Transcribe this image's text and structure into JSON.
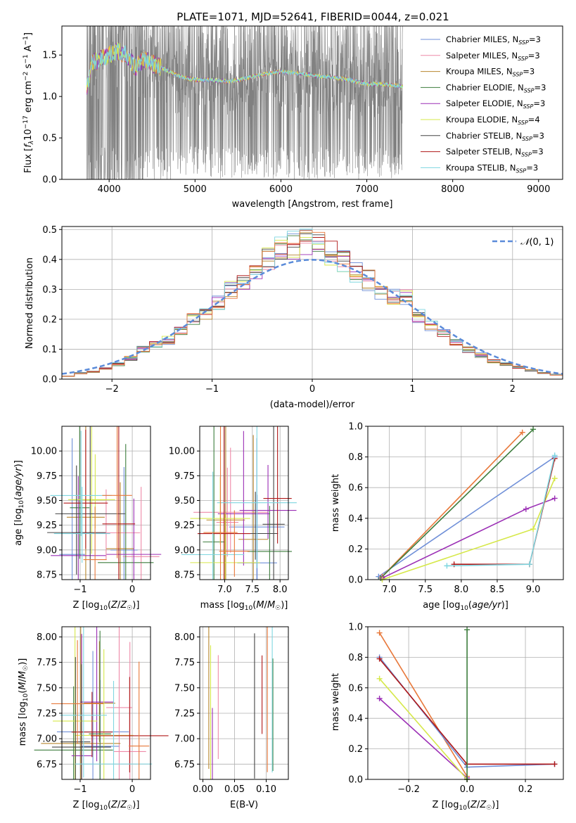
{
  "figure_title": "PLATE=1071, MJD=52641, FIBERID=0044, z=0.021",
  "colors": {
    "chabrier_miles": "#6f8fd8",
    "salpeter_miles": "#ee8aa8",
    "kroupa_miles": "#b8862e",
    "chabrier_elodie": "#3d7d3d",
    "salpeter_elodie": "#9b2eb5",
    "kroupa_elodie": "#d6e84a",
    "chabrier_stelib": "#444444",
    "salpeter_stelib": "#b01818",
    "kroupa_stelib": "#7ed6e0",
    "data": "#808080",
    "orange_curve": "#e8783a",
    "gaussian": "#5b8bd9"
  },
  "legend_entries": [
    "Chabrier MILES, N_SSP=3",
    "Salpeter MILES, N_SSP=3",
    "Kroupa MILES, N_SSP=3",
    "Chabrier ELODIE, N_SSP=3",
    "Salpeter ELODIE, N_SSP=3",
    "Kroupa ELODIE, N_SSP=4",
    "Chabrier STELIB, N_SSP=3",
    "Salpeter STELIB, N_SSP=3",
    "Kroupa STELIB, N_SSP=3"
  ],
  "chart_data": [
    {
      "id": "spectrum",
      "type": "line",
      "xlabel": "wavelength [Angstrom, rest frame]",
      "ylabel": "Flux [f_λ 10^-17 erg cm^-2 s^-1 A^-1]",
      "xlim": [
        3450,
        9280
      ],
      "ylim": [
        0,
        1.85
      ],
      "grid": false,
      "xticks": [
        4000,
        5000,
        6000,
        7000,
        8000,
        9000
      ],
      "yticks": [
        "0.0",
        "0.5",
        "1.0",
        "1.5"
      ],
      "legend_placement": "top-right",
      "data_range": [
        3740,
        7420
      ],
      "model_continuum": {
        "x": [
          3740,
          3800,
          3900,
          4000,
          4100,
          4200,
          4300,
          4400,
          4500,
          4600,
          4700,
          4800,
          4900,
          5000,
          5200,
          5400,
          5600,
          5800,
          6000,
          6200,
          6400,
          6600,
          6800,
          7000,
          7200,
          7420
        ],
        "y": [
          1.1,
          1.4,
          1.45,
          1.5,
          1.55,
          1.5,
          1.35,
          1.45,
          1.4,
          1.35,
          1.3,
          1.25,
          1.22,
          1.2,
          1.2,
          1.18,
          1.22,
          1.27,
          1.3,
          1.28,
          1.25,
          1.23,
          1.2,
          1.15,
          1.15,
          1.12
        ]
      }
    },
    {
      "id": "residuals",
      "type": "line",
      "xlabel": "(data-model)/error",
      "ylabel": "Normed distribution",
      "xlim": [
        -2.5,
        2.5
      ],
      "ylim": [
        0,
        0.51
      ],
      "grid": true,
      "xticks": [
        "−2",
        "−1",
        "0",
        "1",
        "2"
      ],
      "yticks": [
        "0.0",
        "0.1",
        "0.2",
        "0.3",
        "0.4",
        "0.5"
      ],
      "legend": "N(0,1)",
      "legend_placement": "top-right",
      "bin_edges": [
        -2.5,
        -2.375,
        -2.25,
        -2.125,
        -2.0,
        -1.875,
        -1.75,
        -1.625,
        -1.5,
        -1.375,
        -1.25,
        -1.125,
        -1.0,
        -0.875,
        -0.75,
        -0.625,
        -0.5,
        -0.375,
        -0.25,
        -0.125,
        0.0,
        0.125,
        0.25,
        0.375,
        0.5,
        0.625,
        0.75,
        0.875,
        1.0,
        1.125,
        1.25,
        1.375,
        1.5,
        1.625,
        1.75,
        1.875,
        2.0,
        2.125,
        2.25,
        2.375,
        2.5
      ],
      "histogram_mean": [
        0.01,
        0.02,
        0.025,
        0.035,
        0.05,
        0.07,
        0.1,
        0.12,
        0.13,
        0.16,
        0.2,
        0.22,
        0.26,
        0.3,
        0.33,
        0.36,
        0.4,
        0.43,
        0.45,
        0.46,
        0.45,
        0.42,
        0.39,
        0.36,
        0.33,
        0.3,
        0.28,
        0.27,
        0.21,
        0.18,
        0.16,
        0.12,
        0.1,
        0.08,
        0.06,
        0.05,
        0.04,
        0.03,
        0.02,
        0.015
      ]
    },
    {
      "id": "age_vs_Z",
      "type": "scatter",
      "xlabel": "Z [log10(Z/Z☉)]",
      "ylabel": "age [log10(age/yr)]",
      "xlim": [
        -1.35,
        0.35
      ],
      "ylim": [
        8.7,
        10.25
      ],
      "grid": true,
      "xticks": [
        "−1",
        "0"
      ],
      "yticks": [
        "8.75",
        "9.00",
        "9.25",
        "9.50",
        "9.75",
        "10.00"
      ]
    },
    {
      "id": "age_vs_mass",
      "type": "scatter",
      "xlabel": "mass [log10(M/M☉)]",
      "ylabel": "",
      "xlim": [
        6.55,
        8.15
      ],
      "ylim": [
        8.7,
        10.25
      ],
      "grid": true,
      "xticks": [
        "7.0",
        "7.5",
        "8.0"
      ],
      "yticks": [
        "8.75",
        "9.00",
        "9.25",
        "9.50",
        "9.75",
        "10.00"
      ]
    },
    {
      "id": "weight_vs_age",
      "type": "line",
      "xlabel": "age [log10(age/yr)]",
      "ylabel": "mass weight",
      "xlim": [
        6.7,
        9.42
      ],
      "ylim": [
        0,
        1.0
      ],
      "grid": true,
      "xticks": [
        "7.0",
        "7.5",
        "8.0",
        "8.5",
        "9.0"
      ],
      "yticks": [
        "0.0",
        "0.2",
        "0.4",
        "0.6",
        "0.8",
        "1.0"
      ],
      "series": [
        {
          "color_key": "chabrier_miles",
          "x": [
            6.85,
            9.3
          ],
          "y": [
            0.02,
            0.8
          ]
        },
        {
          "color_key": "orange_curve",
          "x": [
            6.9,
            8.85
          ],
          "y": [
            0.02,
            0.96
          ]
        },
        {
          "color_key": "chabrier_elodie",
          "x": [
            6.88,
            9.0
          ],
          "y": [
            0.01,
            0.98
          ]
        },
        {
          "color_key": "salpeter_elodie",
          "x": [
            6.9,
            8.9,
            9.3
          ],
          "y": [
            0.01,
            0.46,
            0.53
          ]
        },
        {
          "color_key": "kroupa_elodie",
          "x": [
            6.9,
            9.0,
            9.3
          ],
          "y": [
            0.0,
            0.33,
            0.66
          ]
        },
        {
          "color_key": "salpeter_stelib",
          "x": [
            7.9,
            8.95,
            9.3
          ],
          "y": [
            0.1,
            0.1,
            0.79
          ]
        },
        {
          "color_key": "kroupa_stelib",
          "x": [
            7.8,
            8.95,
            9.3
          ],
          "y": [
            0.09,
            0.1,
            0.81
          ]
        }
      ]
    },
    {
      "id": "mass_vs_Z",
      "type": "scatter",
      "xlabel": "Z [log10(Z/Z☉)]",
      "ylabel": "mass [log10(M/M☉)]",
      "xlim": [
        -1.35,
        0.35
      ],
      "ylim": [
        6.6,
        8.1
      ],
      "grid": true,
      "xticks": [
        "−1",
        "0"
      ],
      "yticks": [
        "6.75",
        "7.00",
        "7.25",
        "7.50",
        "7.75",
        "8.00"
      ]
    },
    {
      "id": "mass_vs_ebv",
      "type": "scatter",
      "xlabel": "E(B-V)",
      "ylabel": "",
      "xlim": [
        -0.005,
        0.135
      ],
      "ylim": [
        6.6,
        8.1
      ],
      "grid": true,
      "xticks": [
        "0.00",
        "0.05",
        "0.10"
      ],
      "yticks": [
        "6.75",
        "7.00",
        "7.25",
        "7.50",
        "7.75",
        "8.00"
      ]
    },
    {
      "id": "weight_vs_Z",
      "type": "line",
      "xlabel": "Z [log10(Z/Z☉)]",
      "ylabel": "mass weight",
      "xlim": [
        -0.34,
        0.33
      ],
      "ylim": [
        0,
        1.0
      ],
      "grid": true,
      "xticks": [
        "−0.2",
        "0.0",
        "0.2"
      ],
      "yticks": [
        "0.0",
        "0.2",
        "0.4",
        "0.6",
        "0.8",
        "1.0"
      ],
      "series": [
        {
          "color_key": "orange_curve",
          "x": [
            -0.3,
            0.0
          ],
          "y": [
            0.96,
            0.02
          ]
        },
        {
          "color_key": "chabrier_miles",
          "x": [
            -0.3,
            0.0,
            0.3
          ],
          "y": [
            0.8,
            0.08,
            0.1
          ]
        },
        {
          "color_key": "salpeter_stelib",
          "x": [
            -0.3,
            0.0,
            0.3
          ],
          "y": [
            0.79,
            0.1,
            0.1
          ]
        },
        {
          "color_key": "salpeter_elodie",
          "x": [
            -0.3,
            0.0
          ],
          "y": [
            0.53,
            0.01
          ]
        },
        {
          "color_key": "kroupa_elodie",
          "x": [
            -0.3,
            0.0
          ],
          "y": [
            0.66,
            0.0
          ]
        },
        {
          "color_key": "chabrier_elodie",
          "x": [
            0.0,
            0.0
          ],
          "y": [
            0.0,
            0.98
          ]
        }
      ]
    }
  ]
}
